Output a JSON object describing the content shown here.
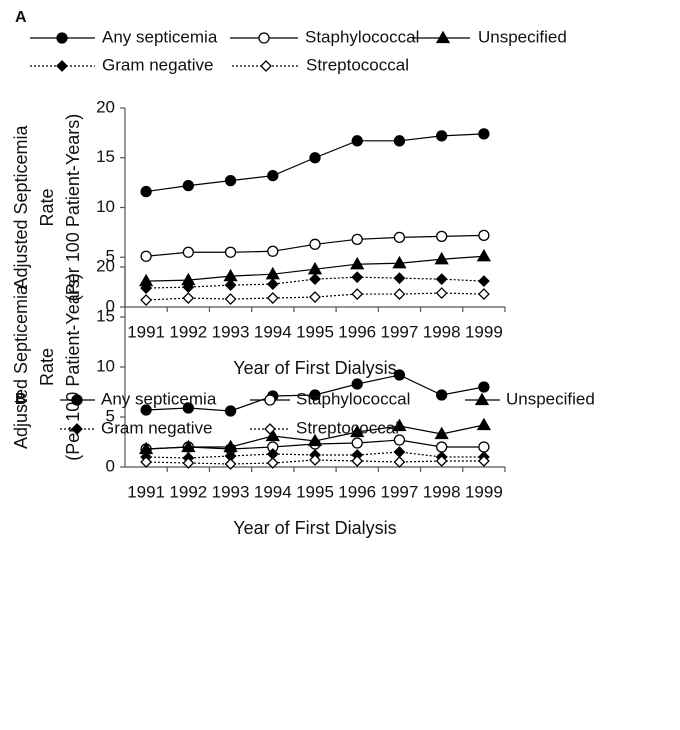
{
  "chart_data": [
    {
      "type": "line",
      "panel": "A",
      "xlabel": "Year of First Dialysis",
      "ylabel": [
        "Adjusted Septicemia",
        "Rate",
        "(Per 100 Patient-Years)"
      ],
      "categories": [
        "1991",
        "1992",
        "1993",
        "1994",
        "1995",
        "1996",
        "1997",
        "1998",
        "1999"
      ],
      "ylim": [
        0,
        20
      ],
      "yticks": [
        0,
        5,
        10,
        15,
        20
      ],
      "series": [
        {
          "name": "Any septicemia",
          "color": "#000000",
          "marker": "circle",
          "filled": true,
          "line_style": "solid",
          "values": [
            11.6,
            12.2,
            12.7,
            13.2,
            15.0,
            16.7,
            16.7,
            17.2,
            17.4
          ]
        },
        {
          "name": "Staphylococcal",
          "color": "#000000",
          "marker": "circle",
          "filled": false,
          "line_style": "solid",
          "values": [
            5.1,
            5.5,
            5.5,
            5.6,
            6.3,
            6.8,
            7.0,
            7.1,
            7.2
          ]
        },
        {
          "name": "Unspecified",
          "color": "#000000",
          "marker": "triangle",
          "filled": true,
          "line_style": "solid",
          "values": [
            2.6,
            2.7,
            3.1,
            3.3,
            3.8,
            4.3,
            4.4,
            4.8,
            5.1
          ]
        },
        {
          "name": "Gram negative",
          "color": "#000000",
          "marker": "diamond",
          "filled": true,
          "line_style": "dotted",
          "values": [
            1.9,
            2.0,
            2.2,
            2.3,
            2.8,
            3.0,
            2.9,
            2.8,
            2.6
          ]
        },
        {
          "name": "Streptococcal",
          "color": "#000000",
          "marker": "diamond",
          "filled": false,
          "line_style": "dotted",
          "values": [
            0.7,
            0.9,
            0.8,
            0.9,
            1.0,
            1.3,
            1.3,
            1.4,
            1.3
          ]
        }
      ]
    },
    {
      "type": "line",
      "panel": "B",
      "xlabel": "Year of First Dialysis",
      "ylabel": [
        "Adjusted Septicemia",
        "Rate",
        "(Per 100 Patient-Years)"
      ],
      "categories": [
        "1991",
        "1992",
        "1993",
        "1994",
        "1995",
        "1996",
        "1997",
        "1998",
        "1999"
      ],
      "ylim": [
        0,
        20
      ],
      "yticks": [
        0,
        5,
        10,
        15,
        20
      ],
      "series": [
        {
          "name": "Any septicemia",
          "color": "#000000",
          "marker": "circle",
          "filled": true,
          "line_style": "solid",
          "values": [
            5.7,
            5.9,
            5.6,
            7.1,
            7.2,
            8.3,
            9.2,
            7.2,
            8.0
          ]
        },
        {
          "name": "Staphylococcal",
          "color": "#000000",
          "marker": "circle",
          "filled": false,
          "line_style": "solid",
          "values": [
            1.8,
            2.0,
            1.8,
            2.0,
            2.3,
            2.4,
            2.7,
            2.0,
            2.0
          ]
        },
        {
          "name": "Unspecified",
          "color": "#000000",
          "marker": "triangle",
          "filled": true,
          "line_style": "solid",
          "values": [
            1.8,
            2.0,
            2.0,
            3.1,
            2.6,
            3.5,
            4.1,
            3.3,
            4.2
          ]
        },
        {
          "name": "Gram negative",
          "color": "#000000",
          "marker": "diamond",
          "filled": true,
          "line_style": "dotted",
          "values": [
            1.0,
            0.9,
            1.1,
            1.3,
            1.2,
            1.2,
            1.5,
            1.0,
            1.0
          ]
        },
        {
          "name": "Streptococcal",
          "color": "#000000",
          "marker": "diamond",
          "filled": false,
          "line_style": "dotted",
          "values": [
            0.5,
            0.4,
            0.3,
            0.4,
            0.7,
            0.6,
            0.5,
            0.6,
            0.6
          ]
        }
      ]
    }
  ]
}
